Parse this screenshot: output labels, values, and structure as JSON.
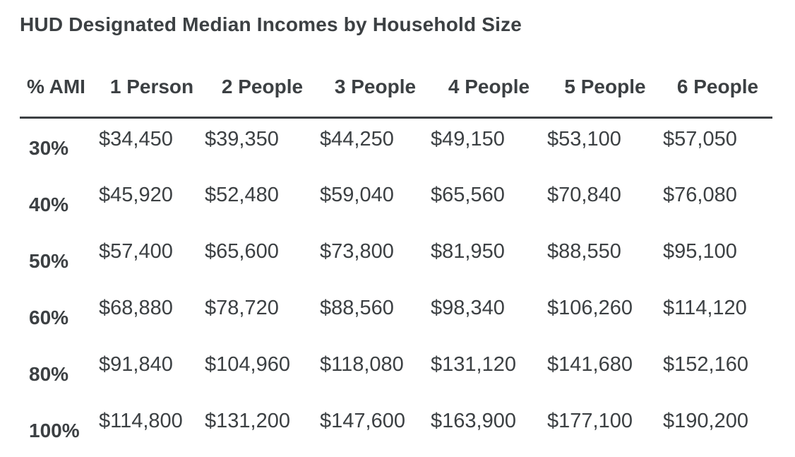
{
  "title": "HUD Designated Median Incomes by Household Size",
  "table": {
    "columns": [
      "% AMI",
      "1 Person",
      "2 People",
      "3 People",
      "4 People",
      "5 People",
      "6 People"
    ],
    "rows": [
      {
        "ami": "30%",
        "values": [
          "$34,450",
          "$39,350",
          "$44,250",
          "$49,150",
          "$53,100",
          "$57,050"
        ]
      },
      {
        "ami": "40%",
        "values": [
          "$45,920",
          "$52,480",
          "$59,040",
          "$65,560",
          "$70,840",
          "$76,080"
        ]
      },
      {
        "ami": "50%",
        "values": [
          "$57,400",
          "$65,600",
          "$73,800",
          "$81,950",
          "$88,550",
          "$95,100"
        ]
      },
      {
        "ami": "60%",
        "values": [
          "$68,880",
          "$78,720",
          "$88,560",
          "$98,340",
          "$106,260",
          "$114,120"
        ]
      },
      {
        "ami": "80%",
        "values": [
          "$91,840",
          "$104,960",
          "$118,080",
          "$131,120",
          "$141,680",
          "$152,160"
        ]
      },
      {
        "ami": "100%",
        "values": [
          "$114,800",
          "$131,200",
          "$147,600",
          "$163,900",
          "$177,100",
          "$190,200"
        ]
      }
    ]
  },
  "chart_data": {
    "type": "table",
    "title": "HUD Designated Median Incomes by Household Size",
    "columns": [
      "% AMI",
      "1 Person",
      "2 People",
      "3 People",
      "4 People",
      "5 People",
      "6 People"
    ],
    "rows": [
      [
        "30%",
        34450,
        39350,
        44250,
        49150,
        53100,
        57050
      ],
      [
        "40%",
        45920,
        52480,
        59040,
        65560,
        70840,
        76080
      ],
      [
        "50%",
        57400,
        65600,
        73800,
        81950,
        88550,
        95100
      ],
      [
        "60%",
        68880,
        78720,
        88560,
        98340,
        106260,
        114120
      ],
      [
        "80%",
        91840,
        104960,
        118080,
        131120,
        141680,
        152160
      ],
      [
        "100%",
        114800,
        131200,
        147600,
        163900,
        177100,
        190200
      ]
    ]
  },
  "colors": {
    "text": "#3c4043",
    "divider": "#3c4043",
    "background": "#ffffff"
  }
}
